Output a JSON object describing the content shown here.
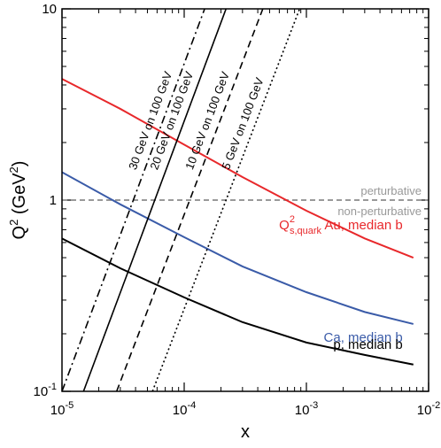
{
  "chart_data": {
    "type": "line",
    "x_scale": "log",
    "y_scale": "log",
    "xlim": [
      1e-05,
      0.01
    ],
    "ylim": [
      0.1,
      10
    ],
    "xlabel": "x",
    "ylabel": {
      "main": "Q",
      "sup": "2",
      "unit_open": " (GeV",
      "unit_sup": "2",
      "unit_close": ")"
    },
    "x_ticks": [
      {
        "value": 1e-05,
        "base": "10",
        "exp": "-5"
      },
      {
        "value": 0.0001,
        "base": "10",
        "exp": "-4"
      },
      {
        "value": 0.001,
        "base": "10",
        "exp": "-3"
      },
      {
        "value": 0.01,
        "base": "10",
        "exp": "-2"
      }
    ],
    "y_ticks": [
      {
        "value": 0.1,
        "base": "10",
        "exp": "-1"
      },
      {
        "value": 1,
        "label": "1"
      },
      {
        "value": 10,
        "label": "10"
      }
    ],
    "threshold": {
      "value": 1,
      "above_label": "perturbative",
      "below_label": "non-perturbative",
      "color": "#999999"
    },
    "series": [
      {
        "color": "#e8282b",
        "style": "solid",
        "x": [
          1e-05,
          3e-05,
          0.0001,
          0.0003,
          0.001,
          0.003,
          0.0075
        ],
        "y": [
          4.3,
          3.0,
          1.95,
          1.32,
          0.88,
          0.63,
          0.5
        ]
      },
      {
        "color": "#3a5ba8",
        "style": "solid",
        "x": [
          1e-05,
          3e-05,
          0.0001,
          0.0003,
          0.001,
          0.003,
          0.0075
        ],
        "y": [
          1.4,
          0.95,
          0.64,
          0.45,
          0.33,
          0.26,
          0.225
        ]
      },
      {
        "color": "#000000",
        "style": "solid",
        "x": [
          1e-05,
          3e-05,
          0.0001,
          0.0003,
          0.001,
          0.003,
          0.0075
        ],
        "y": [
          0.63,
          0.44,
          0.31,
          0.23,
          0.18,
          0.155,
          0.138
        ]
      },
      {
        "name": "30 GeV on 100 GeV",
        "style": "dashdot",
        "color": "#000000",
        "x": [
          1e-05,
          0.000147
        ],
        "y": [
          0.1,
          10
        ]
      },
      {
        "name": "20 GeV on 100 GeV",
        "style": "solid",
        "color": "#000000",
        "x": [
          1.5e-05,
          0.00022
        ],
        "y": [
          0.1,
          10
        ]
      },
      {
        "name": "10 GeV on 100 GeV",
        "style": "dashed",
        "color": "#000000",
        "x": [
          2.8e-05,
          0.00044
        ],
        "y": [
          0.1,
          10
        ]
      },
      {
        "name": "5 GeV on 100 GeV",
        "style": "dotted",
        "color": "#000000",
        "x": [
          5.5e-05,
          0.00088
        ],
        "y": [
          0.1,
          10
        ]
      }
    ],
    "curve_labels": [
      {
        "color": "#e8282b",
        "parts": [
          {
            "t": "Q"
          },
          {
            "t": "2",
            "shift": "sup"
          },
          {
            "t": "s,quark",
            "shift": "sub"
          },
          {
            "t": " Au, median b"
          }
        ]
      },
      {
        "color": "#3a5ba8",
        "parts": [
          {
            "t": "Ca, median b"
          }
        ]
      },
      {
        "color": "#000000",
        "parts": [
          {
            "t": "p, median b"
          }
        ]
      }
    ]
  }
}
